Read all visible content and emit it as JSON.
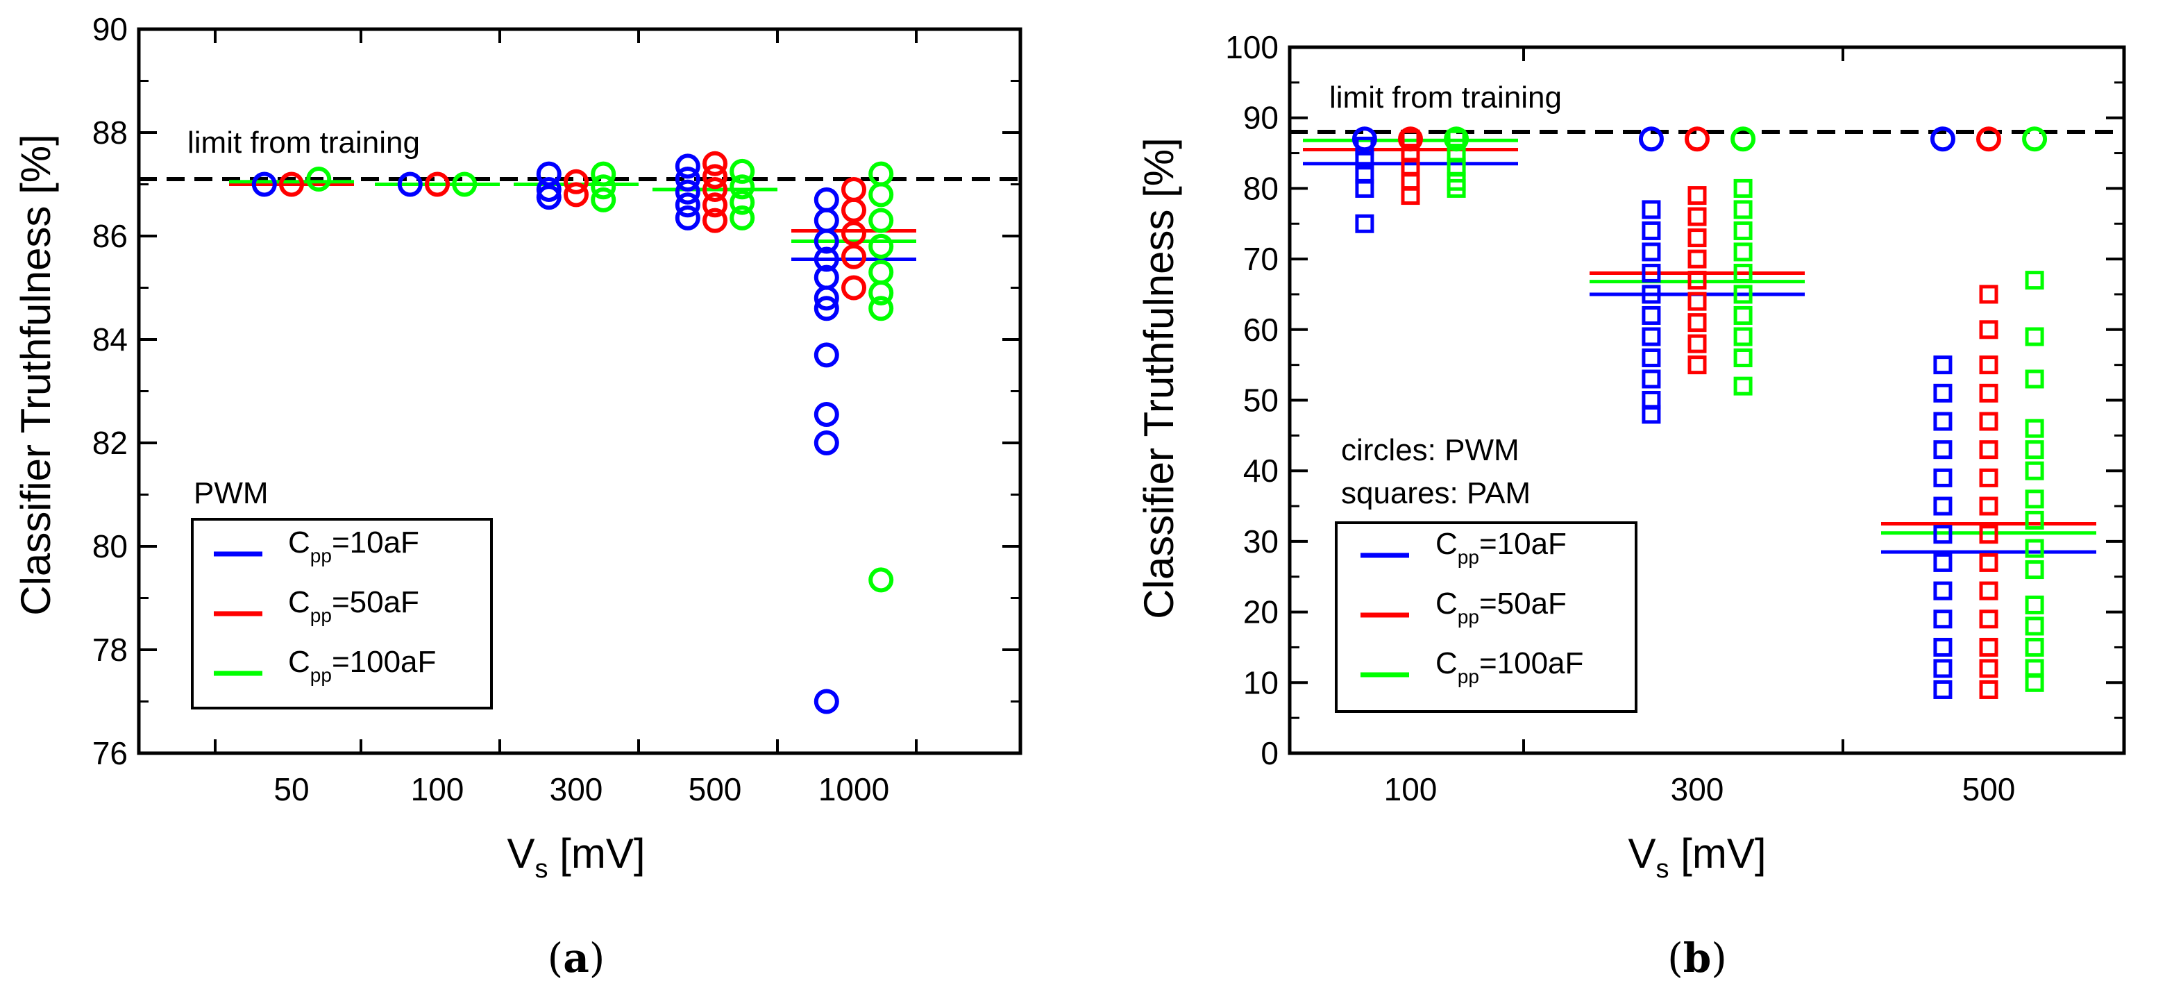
{
  "colors": {
    "blue": "#0000ff",
    "red": "#ff0000",
    "green": "#00ff00",
    "axis": "#000000"
  },
  "chart_data": [
    {
      "id": "a",
      "type": "scatter",
      "caption_prefix": "(",
      "caption_letter": "a",
      "caption_suffix": ")",
      "xlabel": {
        "base": "V",
        "sub": "s",
        "rest": " [mV]"
      },
      "ylabel": "Classifier Truthfulness [%]",
      "categories": [
        "50",
        "100",
        "300",
        "500",
        "1000"
      ],
      "ylim": [
        76,
        90
      ],
      "yticks": [
        76,
        78,
        80,
        82,
        84,
        86,
        88,
        90
      ],
      "ytick_labels": [
        "76",
        "78",
        "80",
        "82",
        "84",
        "86",
        "88",
        "90"
      ],
      "minor_y_step": 1,
      "limit_from_training": 87.1,
      "limit_label": "limit from training",
      "annotation_lines": [
        "PWM"
      ],
      "legend_entries": [
        {
          "color": "blue",
          "prefix": "C",
          "sub": "pp",
          "suffix": "=10aF"
        },
        {
          "color": "red",
          "prefix": "C",
          "sub": "pp",
          "suffix": "=50aF"
        },
        {
          "color": "green",
          "prefix": "C",
          "sub": "pp",
          "suffix": "=100aF"
        }
      ],
      "series": [
        {
          "name": "Cpp=10aF PWM",
          "color": "blue",
          "marker": "circle",
          "offset": -0.28,
          "points": [
            [
              0,
              87.0
            ],
            [
              1,
              87.0
            ],
            [
              2,
              87.2
            ],
            [
              2,
              86.9
            ],
            [
              2,
              86.75
            ],
            [
              3,
              87.35
            ],
            [
              3,
              87.1
            ],
            [
              3,
              86.85
            ],
            [
              3,
              86.6
            ],
            [
              3,
              86.35
            ],
            [
              4,
              86.7
            ],
            [
              4,
              86.3
            ],
            [
              4,
              85.9
            ],
            [
              4,
              85.55
            ],
            [
              4,
              85.2
            ],
            [
              4,
              84.8
            ],
            [
              4,
              84.6
            ],
            [
              4,
              83.7
            ],
            [
              4,
              82.55
            ],
            [
              4,
              82.0
            ],
            [
              4,
              77.0
            ]
          ],
          "means": [
            87.0,
            87.0,
            87.0,
            86.9,
            85.55
          ]
        },
        {
          "name": "Cpp=50aF PWM",
          "color": "red",
          "marker": "circle",
          "offset": 0.0,
          "points": [
            [
              0,
              87.0
            ],
            [
              1,
              87.0
            ],
            [
              2,
              87.05
            ],
            [
              2,
              86.8
            ],
            [
              3,
              87.4
            ],
            [
              3,
              87.15
            ],
            [
              3,
              86.9
            ],
            [
              3,
              86.6
            ],
            [
              3,
              86.3
            ],
            [
              4,
              86.9
            ],
            [
              4,
              86.5
            ],
            [
              4,
              86.05
            ],
            [
              4,
              85.6
            ],
            [
              4,
              85.0
            ]
          ],
          "means": [
            87.0,
            87.0,
            87.0,
            86.9,
            86.1
          ]
        },
        {
          "name": "Cpp=100aF PWM",
          "color": "green",
          "marker": "circle",
          "offset": 0.28,
          "points": [
            [
              0,
              87.1
            ],
            [
              1,
              87.0
            ],
            [
              2,
              87.2
            ],
            [
              2,
              86.95
            ],
            [
              2,
              86.7
            ],
            [
              3,
              87.25
            ],
            [
              3,
              86.95
            ],
            [
              3,
              86.65
            ],
            [
              3,
              86.35
            ],
            [
              4,
              87.2
            ],
            [
              4,
              86.8
            ],
            [
              4,
              86.3
            ],
            [
              4,
              85.8
            ],
            [
              4,
              85.3
            ],
            [
              4,
              84.9
            ],
            [
              4,
              84.6
            ],
            [
              4,
              79.35
            ]
          ],
          "means": [
            87.05,
            87.0,
            87.0,
            86.9,
            85.9
          ]
        }
      ]
    },
    {
      "id": "b",
      "type": "scatter",
      "caption_prefix": "(",
      "caption_letter": "b",
      "caption_suffix": ")",
      "xlabel": {
        "base": "V",
        "sub": "s",
        "rest": " [mV]"
      },
      "ylabel": "Classifier Truthfulness [%]",
      "categories": [
        "100",
        "300",
        "500"
      ],
      "ylim": [
        0,
        100
      ],
      "yticks": [
        0,
        10,
        20,
        30,
        40,
        50,
        60,
        70,
        80,
        90,
        100
      ],
      "ytick_labels": [
        "0",
        "10",
        "20",
        "30",
        "40",
        "50",
        "60",
        "70",
        "80",
        "90",
        "100"
      ],
      "minor_y_step": 5,
      "limit_from_training": 88,
      "limit_label": "limit from training",
      "annotation_lines": [
        "circles: PWM",
        "squares: PAM"
      ],
      "legend_entries": [
        {
          "color": "blue",
          "prefix": "C",
          "sub": "pp",
          "suffix": "=10aF"
        },
        {
          "color": "red",
          "prefix": "C",
          "sub": "pp",
          "suffix": "=50aF"
        },
        {
          "color": "green",
          "prefix": "C",
          "sub": "pp",
          "suffix": "=100aF"
        }
      ],
      "series": [
        {
          "name": "Cpp=10aF PWM",
          "color": "blue",
          "marker": "circle",
          "offset": -0.28,
          "points": [
            [
              0,
              87
            ],
            [
              1,
              87
            ],
            [
              2,
              87
            ]
          ],
          "means": []
        },
        {
          "name": "Cpp=50aF PWM",
          "color": "red",
          "marker": "circle",
          "offset": 0.0,
          "points": [
            [
              0,
              87
            ],
            [
              1,
              87
            ],
            [
              2,
              87
            ]
          ],
          "means": []
        },
        {
          "name": "Cpp=100aF PWM",
          "color": "green",
          "marker": "circle",
          "offset": 0.28,
          "points": [
            [
              0,
              87
            ],
            [
              1,
              87
            ],
            [
              2,
              87
            ]
          ],
          "means": []
        },
        {
          "name": "Cpp=10aF PAM",
          "color": "blue",
          "marker": "square",
          "offset": -0.28,
          "points": [
            [
              0,
              86
            ],
            [
              0,
              84
            ],
            [
              0,
              82
            ],
            [
              0,
              80
            ],
            [
              0,
              75
            ],
            [
              1,
              77
            ],
            [
              1,
              74
            ],
            [
              1,
              71
            ],
            [
              1,
              68
            ],
            [
              1,
              65
            ],
            [
              1,
              62
            ],
            [
              1,
              59
            ],
            [
              1,
              56
            ],
            [
              1,
              53
            ],
            [
              1,
              50
            ],
            [
              1,
              48
            ],
            [
              2,
              55
            ],
            [
              2,
              51
            ],
            [
              2,
              47
            ],
            [
              2,
              43
            ],
            [
              2,
              39
            ],
            [
              2,
              35
            ],
            [
              2,
              31
            ],
            [
              2,
              27
            ],
            [
              2,
              23
            ],
            [
              2,
              19
            ],
            [
              2,
              15
            ],
            [
              2,
              12
            ],
            [
              2,
              9
            ]
          ],
          "means": [
            83.5,
            65,
            28.5
          ]
        },
        {
          "name": "Cpp=50aF PAM",
          "color": "red",
          "marker": "square",
          "offset": 0.0,
          "points": [
            [
              0,
              87
            ],
            [
              0,
              85
            ],
            [
              0,
              83
            ],
            [
              0,
              81
            ],
            [
              0,
              79
            ],
            [
              1,
              79
            ],
            [
              1,
              76
            ],
            [
              1,
              73
            ],
            [
              1,
              70
            ],
            [
              1,
              67
            ],
            [
              1,
              64
            ],
            [
              1,
              61
            ],
            [
              1,
              58
            ],
            [
              1,
              55
            ],
            [
              2,
              65
            ],
            [
              2,
              60
            ],
            [
              2,
              55
            ],
            [
              2,
              51
            ],
            [
              2,
              47
            ],
            [
              2,
              43
            ],
            [
              2,
              39
            ],
            [
              2,
              35
            ],
            [
              2,
              31
            ],
            [
              2,
              27
            ],
            [
              2,
              23
            ],
            [
              2,
              19
            ],
            [
              2,
              15
            ],
            [
              2,
              12
            ],
            [
              2,
              9
            ]
          ],
          "means": [
            85.5,
            68,
            32.5
          ]
        },
        {
          "name": "Cpp=100aF PAM",
          "color": "green",
          "marker": "square",
          "offset": 0.28,
          "points": [
            [
              0,
              87
            ],
            [
              0,
              85
            ],
            [
              0,
              83
            ],
            [
              0,
              81
            ],
            [
              0,
              80
            ],
            [
              1,
              80
            ],
            [
              1,
              77
            ],
            [
              1,
              74
            ],
            [
              1,
              71
            ],
            [
              1,
              68
            ],
            [
              1,
              65
            ],
            [
              1,
              62
            ],
            [
              1,
              59
            ],
            [
              1,
              56
            ],
            [
              1,
              52
            ],
            [
              2,
              67
            ],
            [
              2,
              59
            ],
            [
              2,
              53
            ],
            [
              2,
              46
            ],
            [
              2,
              43
            ],
            [
              2,
              40
            ],
            [
              2,
              36
            ],
            [
              2,
              33
            ],
            [
              2,
              29
            ],
            [
              2,
              26
            ],
            [
              2,
              21
            ],
            [
              2,
              18
            ],
            [
              2,
              15
            ],
            [
              2,
              12
            ],
            [
              2,
              10
            ]
          ],
          "means": [
            86.8,
            66.8,
            31.2
          ]
        }
      ]
    }
  ]
}
